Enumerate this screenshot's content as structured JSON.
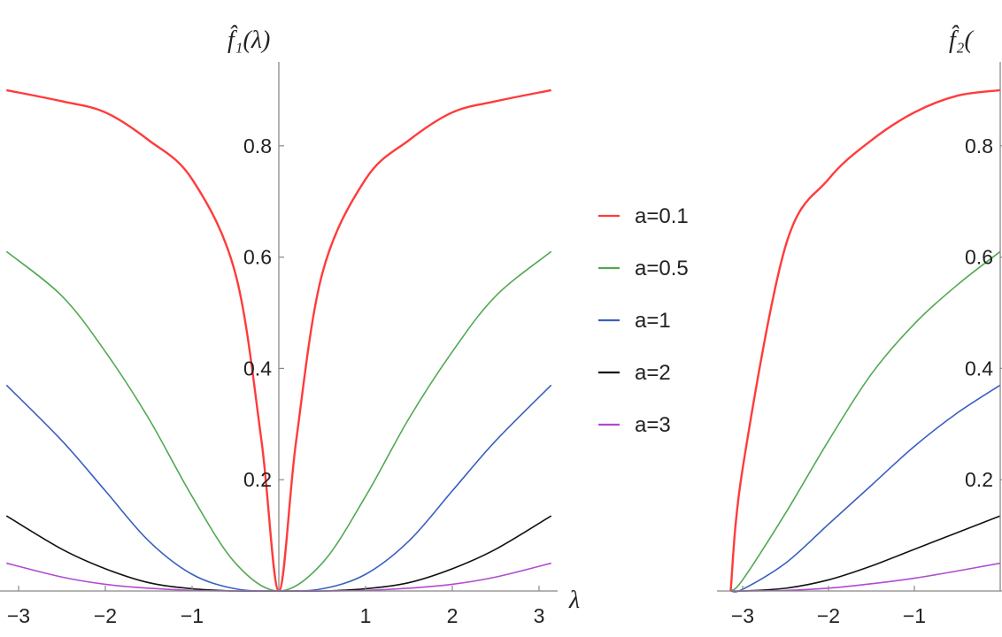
{
  "chart_data": [
    {
      "type": "line",
      "title": "",
      "ylabel": "f̂₁(λ)",
      "xlabel": "λ",
      "xlim": [
        -3.2,
        3.2
      ],
      "ylim": [
        0,
        0.93
      ],
      "x_ticks": [
        -3,
        -2,
        -1,
        1,
        2,
        3
      ],
      "x_tick_labels": [
        "−3",
        "−2",
        "−1",
        "1",
        "2",
        "3"
      ],
      "y_ticks": [
        0.2,
        0.4,
        0.6,
        0.8
      ],
      "y_tick_labels": [
        "0.2",
        "0.4",
        "0.6",
        "0.8"
      ],
      "grid": false,
      "series": [
        {
          "name": "a=0.1",
          "color": "#ff3b3b",
          "a": 0.1,
          "x": [
            -3.14,
            -2.5,
            -2.0,
            -1.5,
            -1.0,
            -0.5,
            -0.2,
            0,
            0.2,
            0.5,
            1.0,
            1.5,
            2.0,
            2.5,
            3.14
          ],
          "values": [
            0.9,
            0.88,
            0.86,
            0.81,
            0.74,
            0.57,
            0.27,
            0,
            0.27,
            0.57,
            0.74,
            0.81,
            0.86,
            0.88,
            0.9
          ]
        },
        {
          "name": "a=0.5",
          "color": "#52a852",
          "a": 0.5,
          "x": [
            -3.14,
            -2.5,
            -2.0,
            -1.5,
            -1.0,
            -0.5,
            0,
            0.5,
            1.0,
            1.5,
            2.0,
            2.5,
            3.14
          ],
          "values": [
            0.61,
            0.53,
            0.43,
            0.31,
            0.17,
            0.05,
            0,
            0.05,
            0.17,
            0.31,
            0.43,
            0.53,
            0.61
          ]
        },
        {
          "name": "a=1",
          "color": "#3a5fc0",
          "a": 1,
          "x": [
            -3.14,
            -2.5,
            -2.0,
            -1.5,
            -1.0,
            -0.5,
            0,
            0.5,
            1.0,
            1.5,
            2.0,
            2.5,
            3.14
          ],
          "values": [
            0.37,
            0.27,
            0.18,
            0.09,
            0.03,
            0.004,
            0,
            0.004,
            0.03,
            0.09,
            0.18,
            0.27,
            0.37
          ]
        },
        {
          "name": "a=2",
          "color": "#111111",
          "a": 2,
          "x": [
            -3.14,
            -2.5,
            -2.0,
            -1.5,
            -1.0,
            -0.5,
            0,
            0.5,
            1.0,
            1.5,
            2.0,
            2.5,
            3.14
          ],
          "values": [
            0.135,
            0.075,
            0.04,
            0.015,
            0.004,
            0,
            0,
            0,
            0.004,
            0.015,
            0.04,
            0.075,
            0.135
          ]
        },
        {
          "name": "a=3",
          "color": "#b04bd0",
          "a": 3,
          "x": [
            -3.14,
            -2.5,
            -2.0,
            -1.5,
            -1.0,
            -0.5,
            0,
            0.5,
            1.0,
            1.5,
            2.0,
            2.5,
            3.14
          ],
          "values": [
            0.05,
            0.025,
            0.012,
            0.005,
            0.001,
            0,
            0,
            0,
            0.001,
            0.005,
            0.012,
            0.025,
            0.05
          ]
        }
      ],
      "legend": {
        "placement": "right",
        "labels": [
          "a=0.1",
          "a=0.5",
          "a=1",
          "a=2",
          "a=3"
        ]
      }
    },
    {
      "type": "line",
      "title": "",
      "ylabel": "f̂₂(",
      "xlabel": "",
      "xlim": [
        -3.2,
        0.85
      ],
      "ylim": [
        0,
        0.93
      ],
      "x_ticks": [
        -3,
        -2,
        -1
      ],
      "x_tick_labels": [
        "−3",
        "−2",
        "−1"
      ],
      "y_ticks": [
        0.2,
        0.4,
        0.6,
        0.8
      ],
      "y_tick_labels": [
        "0.2",
        "0.4",
        "0.6",
        "0.8"
      ],
      "grid": false,
      "series": [
        {
          "color": "#ff3b3b",
          "a": 0.1,
          "x": [
            -3.14,
            -3.0,
            -2.5,
            -2.0,
            -1.5,
            -1.0,
            -0.5,
            0
          ],
          "values": [
            0,
            0.22,
            0.62,
            0.74,
            0.81,
            0.86,
            0.89,
            0.9
          ]
        },
        {
          "color": "#52a852",
          "a": 0.5,
          "x": [
            -3.14,
            -3.0,
            -2.5,
            -2.0,
            -1.5,
            -1.0,
            -0.5,
            0
          ],
          "values": [
            0,
            0.02,
            0.14,
            0.27,
            0.39,
            0.48,
            0.55,
            0.61
          ]
        },
        {
          "color": "#3a5fc0",
          "a": 1,
          "x": [
            -3.14,
            -3.0,
            -2.5,
            -2.0,
            -1.5,
            -1.0,
            -0.5,
            0
          ],
          "values": [
            0,
            0.003,
            0.05,
            0.12,
            0.19,
            0.26,
            0.32,
            0.37
          ]
        },
        {
          "color": "#111111",
          "a": 2,
          "x": [
            -3.14,
            -3.0,
            -2.5,
            -2.0,
            -1.5,
            -1.0,
            -0.5,
            0
          ],
          "values": [
            0,
            0,
            0.005,
            0.02,
            0.045,
            0.075,
            0.105,
            0.135
          ]
        },
        {
          "color": "#b04bd0",
          "a": 3,
          "x": [
            -3.14,
            -3.0,
            -2.5,
            -2.0,
            -1.5,
            -1.0,
            -0.5,
            0
          ],
          "values": [
            0,
            0,
            0.001,
            0.005,
            0.013,
            0.023,
            0.036,
            0.05
          ]
        }
      ]
    }
  ]
}
